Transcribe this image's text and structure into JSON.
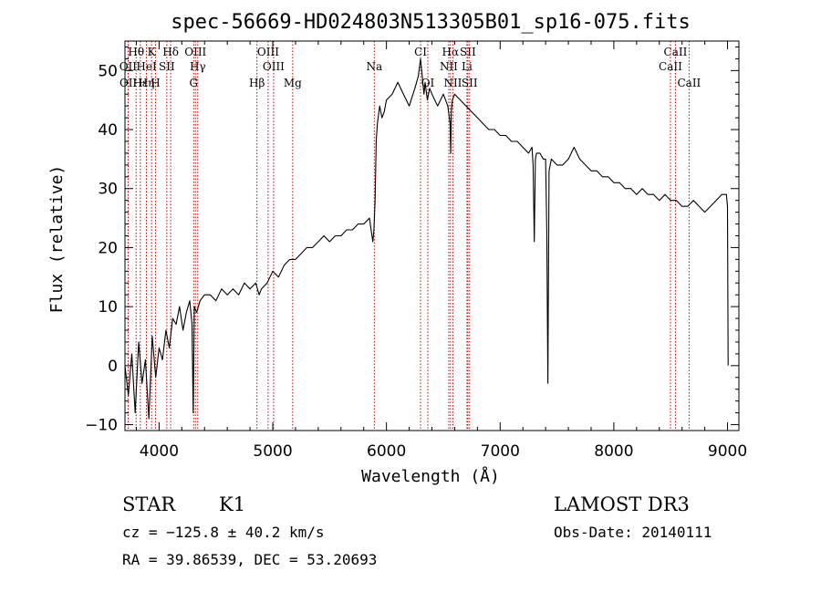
{
  "chart_data": {
    "type": "line",
    "title": "spec-56669-HD024803N513305B01_sp16-075.fits",
    "xlabel": "Wavelength (Å)",
    "ylabel": "Flux (relative)",
    "xlim": [
      3700,
      9100
    ],
    "ylim": [
      -11,
      55
    ],
    "xticks": [
      4000,
      5000,
      6000,
      7000,
      8000,
      9000
    ],
    "yticks": [
      -10,
      0,
      10,
      20,
      30,
      40,
      50
    ],
    "series": [
      {
        "name": "flux",
        "x": [
          3700,
          3730,
          3760,
          3790,
          3820,
          3850,
          3880,
          3910,
          3940,
          3970,
          4000,
          4030,
          4060,
          4090,
          4120,
          4150,
          4180,
          4210,
          4240,
          4270,
          4290,
          4300,
          4310,
          4330,
          4360,
          4400,
          4450,
          4500,
          4550,
          4600,
          4650,
          4700,
          4750,
          4800,
          4850,
          4880,
          4900,
          4950,
          5000,
          5050,
          5100,
          5150,
          5200,
          5250,
          5300,
          5350,
          5400,
          5450,
          5500,
          5550,
          5600,
          5650,
          5700,
          5750,
          5800,
          5850,
          5880,
          5890,
          5900,
          5910,
          5920,
          5940,
          5960,
          5980,
          6000,
          6050,
          6100,
          6150,
          6200,
          6250,
          6280,
          6300,
          6310,
          6320,
          6330,
          6340,
          6360,
          6380,
          6400,
          6450,
          6500,
          6540,
          6560,
          6565,
          6570,
          6580,
          6600,
          6650,
          6700,
          6750,
          6800,
          6850,
          6900,
          6950,
          7000,
          7050,
          7100,
          7150,
          7200,
          7250,
          7280,
          7290,
          7300,
          7310,
          7320,
          7350,
          7380,
          7400,
          7410,
          7420,
          7430,
          7450,
          7500,
          7550,
          7600,
          7650,
          7700,
          7750,
          7800,
          7850,
          7900,
          7950,
          8000,
          8050,
          8100,
          8150,
          8200,
          8250,
          8300,
          8350,
          8400,
          8450,
          8500,
          8550,
          8600,
          8650,
          8700,
          8750,
          8800,
          8850,
          8900,
          8950,
          8990,
          9000,
          9005
        ],
        "values": [
          0,
          -5,
          2,
          -8,
          4,
          -3,
          1,
          -9,
          5,
          -2,
          3,
          1,
          6,
          3,
          8,
          7,
          10,
          6,
          9,
          11,
          7,
          -8,
          10,
          9,
          11,
          12,
          12,
          11,
          13,
          12,
          13,
          12,
          14,
          13,
          14,
          12,
          13,
          14,
          16,
          15,
          17,
          18,
          18,
          19,
          20,
          20,
          21,
          22,
          21,
          22,
          22,
          23,
          23,
          24,
          24,
          25,
          21,
          23,
          28,
          38,
          41,
          44,
          42,
          43,
          45,
          46,
          48,
          46,
          44,
          47,
          49,
          52,
          50,
          48,
          46,
          48,
          45,
          47,
          46,
          44,
          46,
          44,
          41,
          36,
          43,
          45,
          46,
          45,
          44,
          43,
          42,
          41,
          40,
          40,
          39,
          39,
          38,
          38,
          37,
          36,
          37,
          34,
          21,
          35,
          36,
          36,
          35,
          35,
          23,
          -3,
          33,
          35,
          34,
          34,
          35,
          37,
          35,
          34,
          33,
          33,
          32,
          32,
          31,
          31,
          30,
          30,
          29,
          30,
          29,
          29,
          28,
          29,
          28,
          28,
          27,
          27,
          28,
          27,
          26,
          27,
          28,
          29,
          29,
          27,
          0
        ]
      }
    ],
    "line_markers": [
      {
        "label": "Hθ",
        "wavelength": 3798,
        "row": 0
      },
      {
        "label": "OII",
        "wavelength": 3727,
        "row": 1
      },
      {
        "label": "OII",
        "wavelength": 3729,
        "row": 2
      },
      {
        "label": "Hε",
        "wavelength": 3835,
        "row": 2
      },
      {
        "label": "K",
        "wavelength": 3934,
        "row": 0
      },
      {
        "label": "HeI",
        "wavelength": 3889,
        "row": 1
      },
      {
        "label": "Hη",
        "wavelength": 3889,
        "row": 2
      },
      {
        "label": "H",
        "wavelength": 3969,
        "row": 2
      },
      {
        "label": "SII",
        "wavelength": 4068,
        "row": 1
      },
      {
        "label": "Hδ",
        "wavelength": 4102,
        "row": 0
      },
      {
        "label": "OIII",
        "wavelength": 4320,
        "row": 0
      },
      {
        "label": "Hγ",
        "wavelength": 4340,
        "row": 1
      },
      {
        "label": "G",
        "wavelength": 4304,
        "row": 2
      },
      {
        "label": "Hβ",
        "wavelength": 4861,
        "row": 2
      },
      {
        "label": "OIII",
        "wavelength": 4959,
        "row": 0
      },
      {
        "label": "OIII",
        "wavelength": 5007,
        "row": 1
      },
      {
        "label": "Mg",
        "wavelength": 5175,
        "row": 2
      },
      {
        "label": "Na",
        "wavelength": 5893,
        "row": 1
      },
      {
        "label": "CI",
        "wavelength": 6300,
        "row": 0
      },
      {
        "label": "OI",
        "wavelength": 6364,
        "row": 2
      },
      {
        "label": "Hα",
        "wavelength": 6563,
        "row": 0
      },
      {
        "label": "SII",
        "wavelength": 6716,
        "row": 0
      },
      {
        "label": "NII",
        "wavelength": 6548,
        "row": 1
      },
      {
        "label": "Li",
        "wavelength": 6708,
        "row": 1
      },
      {
        "label": "NII",
        "wavelength": 6584,
        "row": 2
      },
      {
        "label": "SII",
        "wavelength": 6731,
        "row": 2
      },
      {
        "label": "CaII",
        "wavelength": 8542,
        "row": 0
      },
      {
        "label": "CaII",
        "wavelength": 8498,
        "row": 1
      },
      {
        "label": "CaII",
        "wavelength": 8662,
        "row": 2
      }
    ],
    "grid": false
  },
  "info": {
    "class": "STAR",
    "subclass": "K1",
    "survey": "LAMOST DR3",
    "cz": "cz = −125.8 ± 40.2 km/s",
    "obs_date": "Obs-Date: 20140111",
    "coords": "RA =  39.86539, DEC =  53.20693"
  },
  "colors": {
    "line": "#000000",
    "marker": "#cc0000",
    "axes": "#000000"
  }
}
